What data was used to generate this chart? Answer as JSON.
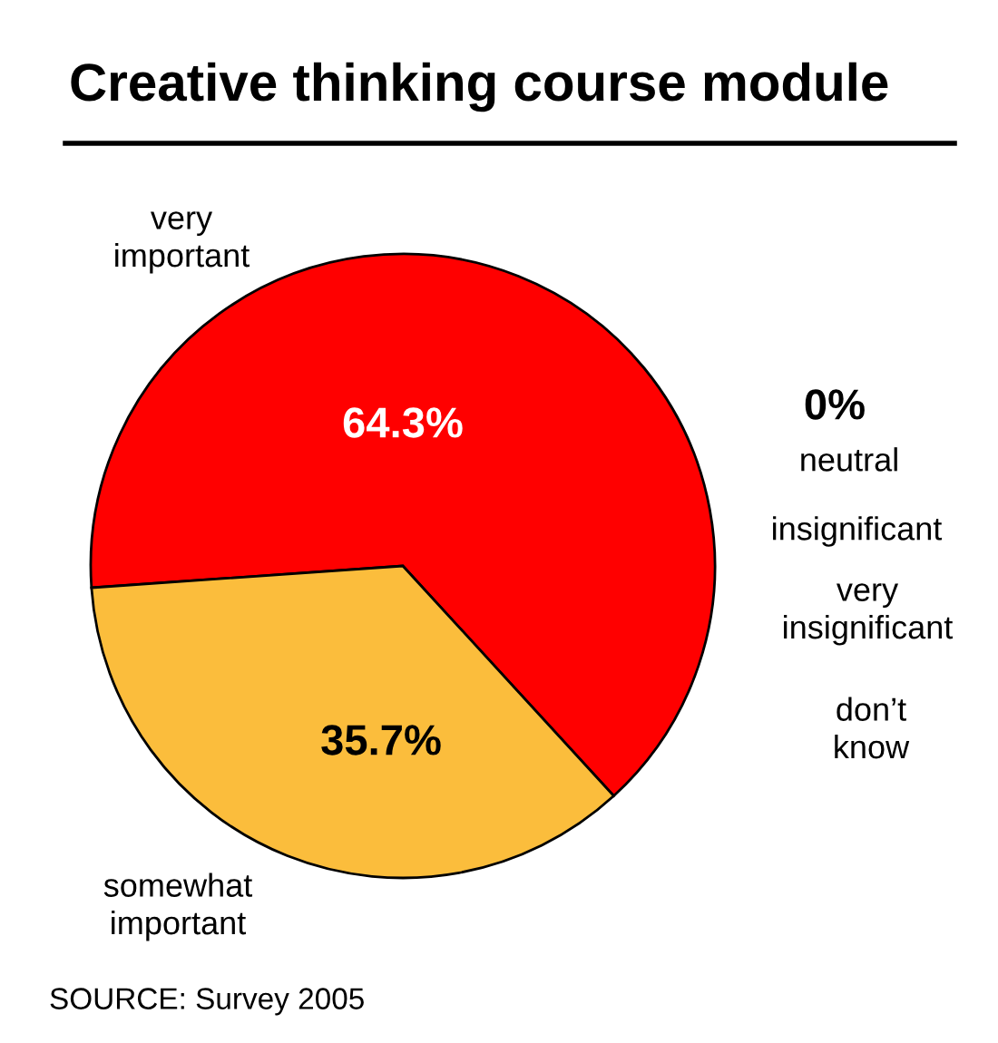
{
  "chart_data": {
    "type": "pie",
    "title": "Creative thinking course module",
    "categories": [
      "very important",
      "somewhat important",
      "neutral",
      "insignificant",
      "very insignificant",
      "don’t know"
    ],
    "values": [
      64.3,
      35.7,
      0,
      0,
      0,
      0
    ],
    "colors": [
      "#ff0000",
      "#fbbd3c",
      null,
      null,
      null,
      null
    ],
    "value_labels": [
      "64.3%",
      "35.7%",
      "0%",
      null,
      null,
      null
    ],
    "legend": false,
    "annotations": [
      "SOURCE: Survey 2005"
    ]
  }
}
